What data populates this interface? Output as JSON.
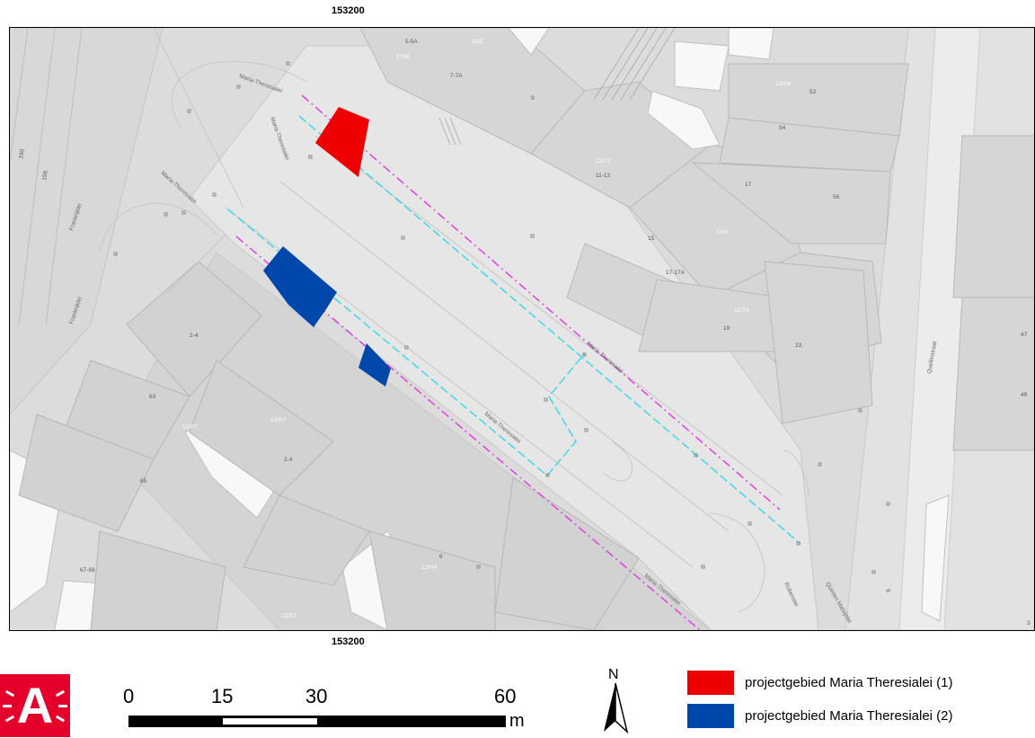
{
  "coords": {
    "top": "153200",
    "bottom": "153200"
  },
  "streets": {
    "maria_theresialei_1": "Maria-Theresialei",
    "maria_theresialei_2": "Maria-Theresialei",
    "maria_theresialei_3": "Maria-Theresialei",
    "maria_theresialei_4": "Maria-Theresialei",
    "maria_theresialei_5": "Maria-Theresialei",
    "maria_theresialei_6": "Maria-Theresialei",
    "frankrijklei_1": "Frankrijklei",
    "frankrijklei_2": "Frankrijklei",
    "quellinstraat": "Quellinstraat",
    "rubenslei": "Rubenslei",
    "quinten_matsijslei": "Quinten Matsijslei"
  },
  "parcels": {
    "p1": "5-5A",
    "p2": "7-7A",
    "p3": "9",
    "p4": "52",
    "p5": "54",
    "p6": "11-13",
    "p7": "17",
    "p8": "56",
    "p9": "15",
    "p10": "17-17A",
    "p11": "19",
    "p12": "23",
    "p13": "47",
    "p14": "49",
    "p15": "2-4",
    "p16": "63",
    "p17": "2-4",
    "p18": "65",
    "p19": "6",
    "p20": "67-69",
    "p21": "190",
    "p22": "198",
    "p23": "8",
    "p24": "3"
  },
  "parcel_ids": {
    "i1": "12/E",
    "i2": "17/M",
    "i3": "12/E6",
    "i4": "12/T2",
    "i5": "12/H",
    "i6": "12/T3",
    "i7": "12/K7",
    "i8": "12/P7",
    "i9": "12/H4",
    "i10": "12/X7"
  },
  "scale": {
    "labels": [
      "0",
      "15",
      "30",
      "60"
    ],
    "unit": "m"
  },
  "north": {
    "label": "N"
  },
  "logo": {
    "letter": "A"
  },
  "legend": [
    {
      "label": "projectgebied Maria Theresialei (1)",
      "color": "#ee0000"
    },
    {
      "label": "projectgebied Maria Theresialei (2)",
      "color": "#0047ab"
    }
  ],
  "colors": {
    "project_area_1": "#ee0000",
    "project_area_2": "#0047ab",
    "line_magenta": "#e040e0",
    "line_cyan": "#40d8e8"
  }
}
